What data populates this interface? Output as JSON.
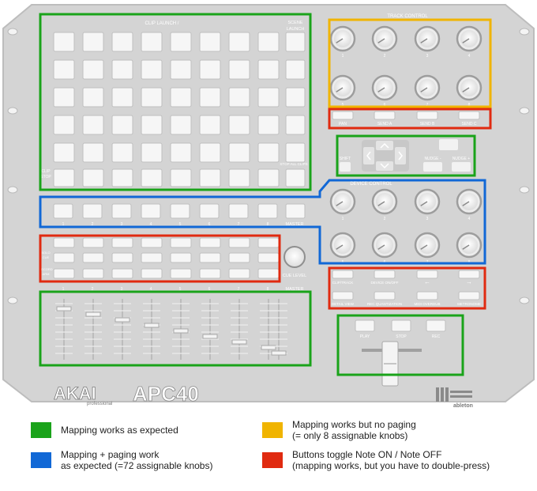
{
  "device": {
    "clip_launch_title": "CLIP LAUNCH / ",
    "scene_launch_1": "SCENE",
    "scene_launch_2": "LAUNCH",
    "clip_stop_1": "CLIP",
    "clip_stop_2": "STOP",
    "stop_all_clips": "STOP ALL CLIPS",
    "track_control_title": "TRACK CONTROL",
    "track_knob_numbers": [
      "1",
      "2",
      "3",
      "4",
      "5",
      "6",
      "7",
      "8"
    ],
    "track_buttons": [
      "PAN",
      "SEND A",
      "SEND B",
      "SEND C"
    ],
    "shift_label": "SHIFT",
    "nudge_minus": "NUDGE -",
    "nudge_plus": "NUDGE +",
    "device_control_title": "DEVICE CONTROL",
    "device_knob_numbers": [
      "1",
      "2",
      "3",
      "4",
      "5",
      "6",
      "7",
      "8"
    ],
    "track_numbers": [
      "1",
      "2",
      "3",
      "4",
      "5",
      "6",
      "7",
      "8"
    ],
    "master_label": "MASTER",
    "cue_level": "CUE LEVEL",
    "solo_label_1": "SOLO",
    "solo_label_2": "CUE",
    "record_label_1": "RECORD",
    "record_label_2": "ARM",
    "device_buttons_row1": [
      "CLIP/TRACK",
      "DEVICE ON/OFF",
      "←",
      "→"
    ],
    "device_buttons_row2": [
      "DETAIL VIEW",
      "REC QUANTIZATION",
      "MIDI OVERDUB",
      "METRONOME"
    ],
    "transport_buttons": [
      "PLAY",
      "STOP",
      "REC"
    ],
    "brand_akai": "AKAI",
    "brand_professional": "professional",
    "brand_model": "APC40",
    "brand_ableton": "ableton"
  },
  "legend": [
    {
      "color": "#1aa31a",
      "lines": [
        "Mapping works as expected"
      ]
    },
    {
      "color": "#f0b400",
      "lines": [
        "Mapping works but no paging",
        "(= only 8 assignable knobs)"
      ]
    },
    {
      "color": "#1168d6",
      "lines": [
        "Mapping + paging work",
        "as expected (=72 assignable knobs)"
      ]
    },
    {
      "color": "#e02a10",
      "lines": [
        "Buttons toggle Note ON / Note OFF",
        "(mapping works, but you have to double-press)"
      ]
    }
  ]
}
